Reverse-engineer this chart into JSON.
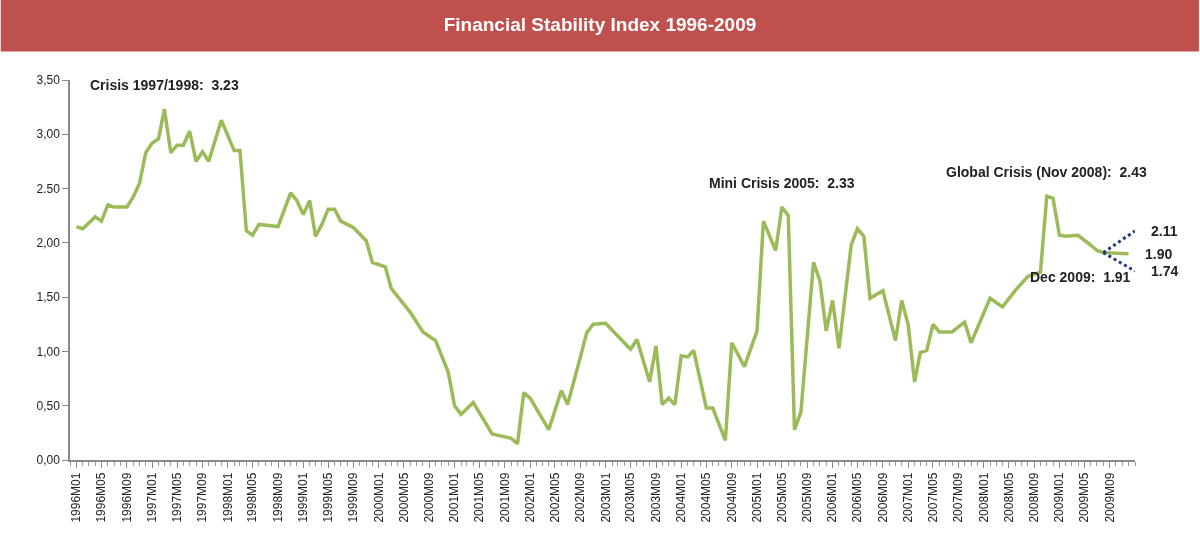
{
  "chart_data": {
    "type": "line",
    "title": "Financial Stability Index 1996-2009",
    "x": [
      "1996-01",
      "1996-02",
      "1996-04",
      "1996-05",
      "1996-06",
      "1996-07",
      "1996-09",
      "1996-10",
      "1996-11",
      "1996-12",
      "1997-01",
      "1997-02",
      "1997-03",
      "1997-04",
      "1997-05",
      "1997-06",
      "1997-07",
      "1997-08",
      "1997-09",
      "1997-10",
      "1997-12",
      "1998-02",
      "1998-03",
      "1998-04",
      "1998-05",
      "1998-06",
      "1998-09",
      "1998-11",
      "1998-12",
      "1999-01",
      "1999-02",
      "1999-03",
      "1999-04",
      "1999-05",
      "1999-06",
      "1999-07",
      "1999-09",
      "1999-11",
      "1999-12",
      "2000-02",
      "2000-03",
      "2000-06",
      "2000-08",
      "2000-10",
      "2000-12",
      "2001-01",
      "2001-02",
      "2001-04",
      "2001-07",
      "2001-10",
      "2001-11",
      "2001-12",
      "2002-01",
      "2002-04",
      "2002-06",
      "2002-07",
      "2002-09",
      "2002-10",
      "2002-11",
      "2003-01",
      "2003-03",
      "2003-05",
      "2003-06",
      "2003-08",
      "2003-09",
      "2003-10",
      "2003-11",
      "2003-12",
      "2004-01",
      "2004-02",
      "2004-03",
      "2004-05",
      "2004-06",
      "2004-08",
      "2004-09",
      "2004-11",
      "2005-01",
      "2005-02",
      "2005-04",
      "2005-05",
      "2005-06",
      "2005-07",
      "2005-08",
      "2005-10",
      "2005-11",
      "2005-12",
      "2006-01",
      "2006-02",
      "2006-04",
      "2006-05",
      "2006-06",
      "2006-07",
      "2006-09",
      "2006-11",
      "2006-12",
      "2007-01",
      "2007-02",
      "2007-03",
      "2007-04",
      "2007-05",
      "2007-06",
      "2007-08",
      "2007-10",
      "2007-11",
      "2008-02",
      "2008-04",
      "2008-06",
      "2008-08",
      "2008-10",
      "2008-11",
      "2008-12",
      "2009-01",
      "2009-02",
      "2009-04",
      "2009-06",
      "2009-07",
      "2009-08",
      "2009-12"
    ],
    "series": [
      {
        "color": "#9bbb59",
        "line_style": "solid",
        "values": [
          2.15,
          2.13,
          2.24,
          2.2,
          2.35,
          2.33,
          2.33,
          2.42,
          2.55,
          2.83,
          2.92,
          2.96,
          3.23,
          2.83,
          2.9,
          2.9,
          3.03,
          2.75,
          2.84,
          2.75,
          3.13,
          2.85,
          2.85,
          2.11,
          2.07,
          2.17,
          2.15,
          2.46,
          2.39,
          2.26,
          2.39,
          2.06,
          2.17,
          2.31,
          2.31,
          2.2,
          2.14,
          2.02,
          1.82,
          1.78,
          1.58,
          1.36,
          1.18,
          1.1,
          0.81,
          0.5,
          0.42,
          0.53,
          0.24,
          0.2,
          0.15,
          0.62,
          0.57,
          0.28,
          0.64,
          0.51,
          0.95,
          1.17,
          1.25,
          1.26,
          1.14,
          1.02,
          1.11,
          0.72,
          1.05,
          0.51,
          0.57,
          0.51,
          0.96,
          0.95,
          1.01,
          0.48,
          0.48,
          0.18,
          1.08,
          0.86,
          1.19,
          2.2,
          1.93,
          2.33,
          2.25,
          0.28,
          0.44,
          1.82,
          1.65,
          1.19,
          1.47,
          1.03,
          1.98,
          2.13,
          2.06,
          1.49,
          1.56,
          1.1,
          1.47,
          1.25,
          0.72,
          0.99,
          1.01,
          1.25,
          1.18,
          1.18,
          1.27,
          1.08,
          1.49,
          1.41,
          1.56,
          1.69,
          1.73,
          2.43,
          2.41,
          2.07,
          2.06,
          2.07,
          1.98,
          1.93,
          1.91,
          1.9
        ]
      },
      {
        "color": "#1f3d7a",
        "line_style": "dotted",
        "x": [
          "2009-08",
          "2010-01"
        ],
        "values": [
          1.91,
          2.11
        ]
      },
      {
        "color": "#1f3d7a",
        "line_style": "dotted",
        "x": [
          "2009-08",
          "2010-01"
        ],
        "values": [
          1.91,
          1.74
        ]
      }
    ],
    "xlim": [
      "1995-12",
      "2010-01"
    ],
    "xticks": [
      {
        "value": "1996-01",
        "label": "1996M01"
      },
      {
        "value": "1996-05",
        "label": "1996M05"
      },
      {
        "value": "1996-09",
        "label": "1996M09"
      },
      {
        "value": "1997-01",
        "label": "1997M01"
      },
      {
        "value": "1997-05",
        "label": "1997M05"
      },
      {
        "value": "1997-09",
        "label": "1997M09"
      },
      {
        "value": "1998-01",
        "label": "1998M01"
      },
      {
        "value": "1998-05",
        "label": "1998M05"
      },
      {
        "value": "1998-09",
        "label": "1998M09"
      },
      {
        "value": "1999-01",
        "label": "1999M01"
      },
      {
        "value": "1999-05",
        "label": "1999M05"
      },
      {
        "value": "1999-09",
        "label": "1999M09"
      },
      {
        "value": "2000-01",
        "label": "2000M01"
      },
      {
        "value": "2000-05",
        "label": "2000M05"
      },
      {
        "value": "2000-09",
        "label": "2000M09"
      },
      {
        "value": "2001-01",
        "label": "2001M01"
      },
      {
        "value": "2001-05",
        "label": "2001M05"
      },
      {
        "value": "2001-09",
        "label": "2001M09"
      },
      {
        "value": "2002-01",
        "label": "2002M01"
      },
      {
        "value": "2002-05",
        "label": "2002M05"
      },
      {
        "value": "2002-09",
        "label": "2002M09"
      },
      {
        "value": "2003-01",
        "label": "2003M01"
      },
      {
        "value": "2003-05",
        "label": "2003M05"
      },
      {
        "value": "2003-09",
        "label": "2003M09"
      },
      {
        "value": "2004-01",
        "label": "2004M01"
      },
      {
        "value": "2004-05",
        "label": "2004M05"
      },
      {
        "value": "2004-09",
        "label": "2004M09"
      },
      {
        "value": "2005-01",
        "label": "2005M01"
      },
      {
        "value": "2005-05",
        "label": "2005M05"
      },
      {
        "value": "2005-09",
        "label": "2005M09"
      },
      {
        "value": "2006-01",
        "label": "2006M01"
      },
      {
        "value": "2006-05",
        "label": "2006M05"
      },
      {
        "value": "2006-09",
        "label": "2006M09"
      },
      {
        "value": "2007-01",
        "label": "2007M01"
      },
      {
        "value": "2007-05",
        "label": "2007M05"
      },
      {
        "value": "2007-09",
        "label": "2007M09"
      },
      {
        "value": "2008-01",
        "label": "2008M01"
      },
      {
        "value": "2008-05",
        "label": "2008M05"
      },
      {
        "value": "2008-09",
        "label": "2008M09"
      },
      {
        "value": "2009-01",
        "label": "2009M01"
      },
      {
        "value": "2009-05",
        "label": "2009M05"
      },
      {
        "value": "2009-09",
        "label": "2009M09"
      }
    ],
    "ylim": [
      0,
      3.5
    ],
    "yticks": [
      {
        "value": 0,
        "label": "0,00"
      },
      {
        "value": 0.5,
        "label": "0,50"
      },
      {
        "value": 1,
        "label": "1,00"
      },
      {
        "value": 1.5,
        "label": "1,50"
      },
      {
        "value": 2,
        "label": "2,00"
      },
      {
        "value": 2.5,
        "label": "2.50"
      },
      {
        "value": 3,
        "label": "3,00"
      },
      {
        "value": 3.5,
        "label": "3,50"
      }
    ],
    "annotations": [
      {
        "text": "Crisis 1997/1998:  3.23",
        "x": "1997-03",
        "y": 3.23
      },
      {
        "text": "Mini Crisis 2005:  2.33",
        "x": "2005-05",
        "y": 2.33
      },
      {
        "text": "Global Crisis (Nov 2008):  2.43",
        "x": "2008-11",
        "y": 2.43
      },
      {
        "text": "Dec 2009:  1.91",
        "x": "2009-12",
        "y": 1.91
      },
      {
        "text": "2.11",
        "x": "2010-01",
        "y": 2.11
      },
      {
        "text": "1.90",
        "x": "2009-12",
        "y": 1.9
      },
      {
        "text": "1.74",
        "x": "2010-01",
        "y": 1.74
      }
    ],
    "marker": "none"
  }
}
